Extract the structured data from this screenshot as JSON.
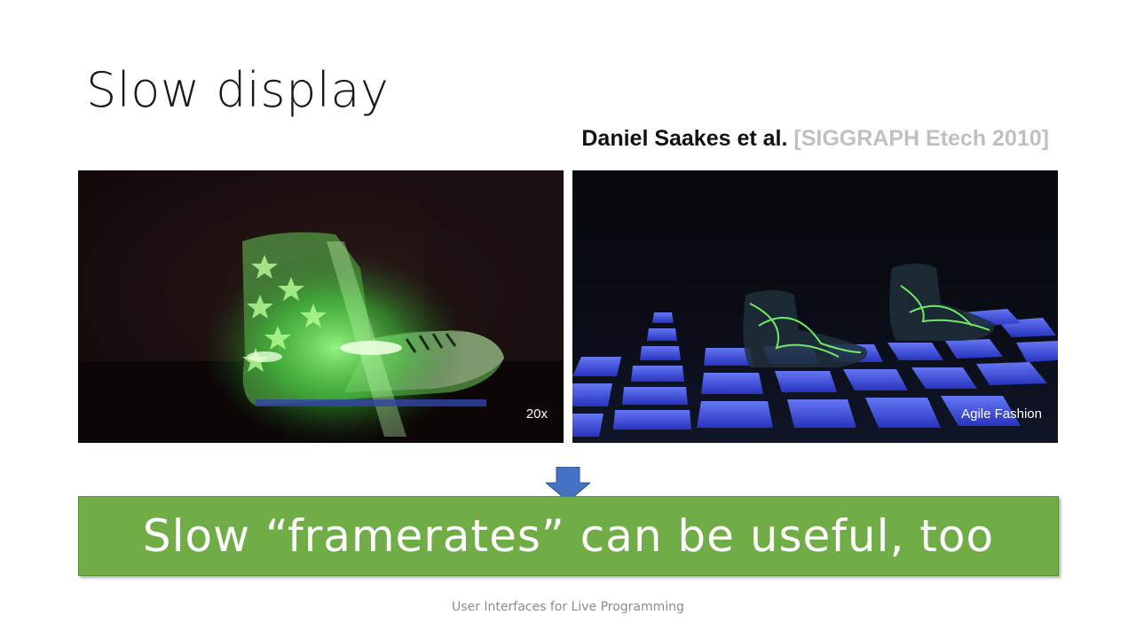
{
  "slide": {
    "title": "Slow display",
    "citation": {
      "authors": "Daniel Saakes et al.",
      "venue": "[SIGGRAPH Etech 2010]"
    },
    "videos": [
      {
        "caption": "20x",
        "description_icon": "glowing-shoe-video"
      },
      {
        "caption": "Agile Fashion",
        "description_icon": "light-floor-shoes-video"
      }
    ],
    "banner": "Slow “framerates” can be useful, too",
    "footer": "User Interfaces for Live Programming"
  },
  "colors": {
    "banner_bg": "#70ad47",
    "arrow": "#4472c4",
    "venue_gray": "#c0c0c0"
  }
}
